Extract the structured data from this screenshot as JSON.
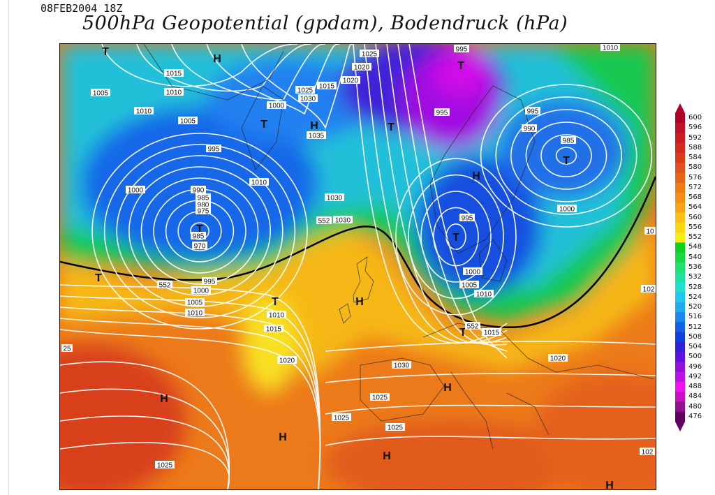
{
  "header": {
    "timestamp": "08FEB2004 18Z",
    "title": "500hPa Geopotential (gpdam), Bodendruck (hPa)"
  },
  "colorbar": {
    "levels": [
      600,
      596,
      592,
      588,
      584,
      580,
      576,
      572,
      568,
      564,
      560,
      556,
      552,
      548,
      540,
      536,
      532,
      528,
      524,
      520,
      516,
      512,
      508,
      504,
      500,
      496,
      492,
      488,
      484,
      480,
      476
    ],
    "colors": [
      "#b0002a",
      "#c0102a",
      "#cc1a22",
      "#d42a1e",
      "#dc3c1a",
      "#e4501a",
      "#ea6418",
      "#f07a16",
      "#f48e14",
      "#f8a414",
      "#fac012",
      "#fad612",
      "#f6ee10",
      "#10d020",
      "#18d840",
      "#20e070",
      "#20e0a0",
      "#20e0d0",
      "#20c8f0",
      "#20a8f0",
      "#1888f0",
      "#1060e8",
      "#1040e0",
      "#3020e0",
      "#6010e0",
      "#9010e0",
      "#c010e8",
      "#f010f0",
      "#c810c0",
      "#901090",
      "#600060"
    ]
  },
  "map": {
    "markers": [
      "T",
      "H",
      "T",
      "H",
      "T",
      "T",
      "T",
      "H",
      "T",
      "T",
      "T",
      "H",
      "T",
      "H",
      "H",
      "H",
      "H",
      "T",
      "H"
    ],
    "isobar_labels": [
      "1015",
      "1005",
      "1010",
      "1010",
      "1005",
      "1025",
      "1030",
      "1015",
      "1000",
      "1035",
      "995",
      "1010",
      "1000",
      "990",
      "985",
      "980",
      "975",
      "985",
      "970",
      "1030",
      "552",
      "1030",
      "1025",
      "1020",
      "1020",
      "995",
      "995",
      "995",
      "990",
      "985",
      "1000",
      "995",
      "1000",
      "1005",
      "1010",
      "552",
      "995",
      "1000",
      "1005",
      "1010",
      "1010",
      "1015",
      "552",
      "1015",
      "1030",
      "1020",
      "1020",
      "1025",
      "1025",
      "1025",
      "1025",
      "25",
      "1010",
      "102",
      "102",
      "10"
    ]
  }
}
